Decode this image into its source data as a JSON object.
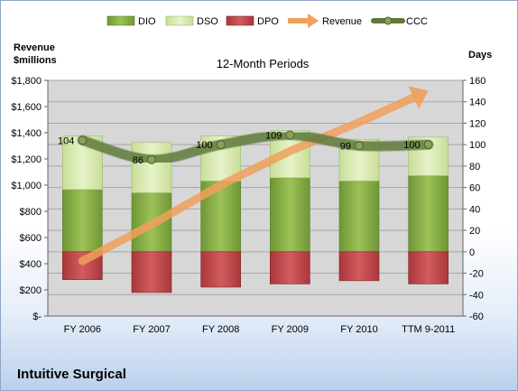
{
  "chart_data": {
    "type": "bar",
    "title": "12-Month Periods",
    "company": "Intuitive Surgical",
    "left_axis_label_line1": "Revenue",
    "left_axis_label_line2": "$millions",
    "right_axis_label": "Days",
    "categories": [
      "FY 2006",
      "FY 2007",
      "FY 2008",
      "FY 2009",
      "FY 2010",
      "TTM 9-2011"
    ],
    "left_ticks": [
      "$-",
      "$200",
      "$400",
      "$600",
      "$800",
      "$1,000",
      "$1,200",
      "$1,400",
      "$1,600",
      "$1,800"
    ],
    "right_ticks": [
      "-60",
      "-40",
      "-20",
      "0",
      "20",
      "40",
      "60",
      "80",
      "100",
      "120",
      "140",
      "160"
    ],
    "left_ylim": [
      0,
      1800
    ],
    "right_ylim": [
      -60,
      160
    ],
    "legend_position": "top",
    "series": [
      {
        "name": "DIO",
        "kind": "stacked-bar",
        "axis": "right",
        "color": "#8db04a",
        "values": [
          58,
          55,
          66,
          69,
          66,
          71
        ]
      },
      {
        "name": "DSO",
        "kind": "stacked-bar",
        "axis": "right",
        "color": "#d9ebb0",
        "values": [
          50,
          47,
          42,
          44,
          39,
          36
        ]
      },
      {
        "name": "DPO",
        "kind": "negative-bar",
        "axis": "right",
        "color": "#c2464a",
        "values": [
          -26,
          -38,
          -33,
          -30,
          -27,
          -30
        ]
      },
      {
        "name": "Revenue",
        "kind": "arrow-line",
        "axis": "left",
        "color": "#f0a05a",
        "values": [
          420,
          700,
          1000,
          1260,
          1480,
          1720
        ]
      },
      {
        "name": "CCC",
        "kind": "smooth-line",
        "axis": "right",
        "color": "#5e7a3a",
        "values": [
          104,
          86,
          100,
          109,
          99,
          100
        ]
      }
    ],
    "ccc_labels": [
      "104",
      "86",
      "100",
      "109",
      "99",
      "100"
    ]
  }
}
